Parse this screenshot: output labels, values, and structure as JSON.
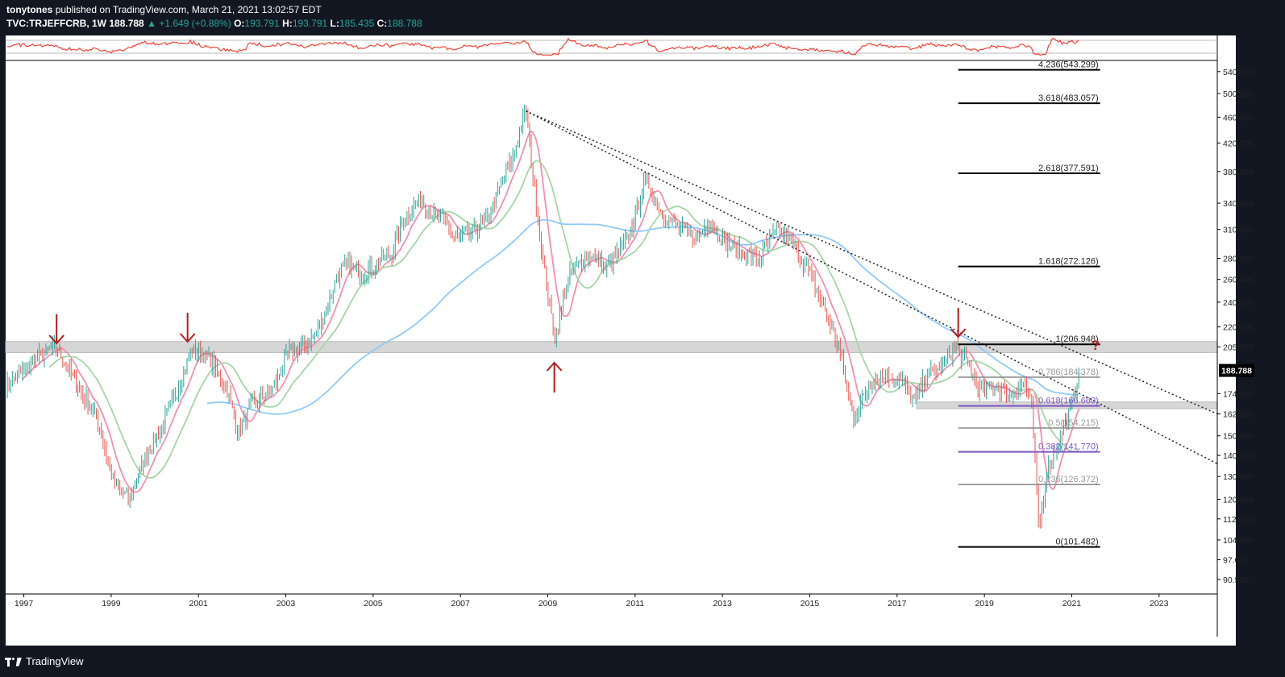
{
  "header": {
    "author": "tonytones",
    "published_text": "published on TradingView.com, March 21, 2021 13:02:57 EDT",
    "symbol": "TVC:TRJEFFCRB",
    "interval": "1W",
    "last": "188.788",
    "change": "+1.649 (+0.88%)",
    "open_label": "O:",
    "open": "193.791",
    "high_label": "H:",
    "high": "193.791",
    "low_label": "L:",
    "low": "185.435",
    "close_label": "C:",
    "close": "188.788"
  },
  "footer": {
    "brand": "TradingView"
  },
  "colors": {
    "up_candle": "#26a69a",
    "down_candle": "#ef5350",
    "ma_fast": "#f48fb1",
    "ma_mid": "#a5d6a7",
    "ma_slow": "#90caf9",
    "arrow": "#b71c1c",
    "fib_purple": "#7e57c2",
    "indicator": "#f44336",
    "price_badge": "#000000"
  },
  "chart_data": {
    "type": "line",
    "title": "TVC:TRJEFFCRB, 1W",
    "xlabel": "",
    "ylabel": "",
    "y_scale": "log",
    "ylim": [
      86,
      560
    ],
    "xlim": [
      "1996-08",
      "2024-05"
    ],
    "x_tick_labels": [
      "1997",
      "1999",
      "2001",
      "2003",
      "2005",
      "2007",
      "2009",
      "2011",
      "2013",
      "2015",
      "2017",
      "2019",
      "2021",
      "2023"
    ],
    "y_tick_labels": [
      "540.000",
      "500.000",
      "460.000",
      "420.000",
      "380.000",
      "340.000",
      "310.000",
      "280.000",
      "260.000",
      "240.000",
      "220.000",
      "205.000",
      "188.788",
      "174.000",
      "162.000",
      "150.000",
      "140.000",
      "130.000",
      "120.000",
      "112.000",
      "104.000",
      "97.000",
      "90.500"
    ],
    "last_price_label": "188.788",
    "series": [
      {
        "name": "TVC:TRJEFFCRB",
        "x": [
          "1996-08",
          "1997-04",
          "1997-10",
          "1998-03",
          "1998-09",
          "1999-02",
          "1999-06",
          "1999-10",
          "2000-03",
          "2000-07",
          "2000-11",
          "2001-04",
          "2001-09",
          "2001-12",
          "2002-04",
          "2002-09",
          "2003-02",
          "2003-06",
          "2003-10",
          "2004-03",
          "2004-06",
          "2004-10",
          "2005-03",
          "2005-06",
          "2005-10",
          "2006-02",
          "2006-05",
          "2006-09",
          "2006-11",
          "2007-03",
          "2007-08",
          "2007-12",
          "2008-03",
          "2008-07",
          "2008-09",
          "2008-12",
          "2009-03",
          "2009-06",
          "2009-08",
          "2010-01",
          "2010-05",
          "2010-11",
          "2011-04",
          "2011-08",
          "2011-12",
          "2012-06",
          "2012-09",
          "2013-02",
          "2013-07",
          "2013-11",
          "2014-04",
          "2014-07",
          "2014-10",
          "2015-01",
          "2015-05",
          "2015-09",
          "2016-01",
          "2016-06",
          "2016-10",
          "2017-02",
          "2017-06",
          "2017-09",
          "2018-01",
          "2018-05",
          "2018-09",
          "2018-12",
          "2019-04",
          "2019-08",
          "2019-12",
          "2020-02",
          "2020-04",
          "2020-06",
          "2020-09",
          "2020-11",
          "2021-01",
          "2021-03"
        ],
        "y": [
          178,
          196,
          205,
          182,
          160,
          126,
          120,
          138,
          155,
          176,
          203,
          197,
          175,
          152,
          168,
          175,
          202,
          205,
          218,
          262,
          275,
          265,
          278,
          285,
          325,
          345,
          330,
          318,
          300,
          305,
          318,
          360,
          395,
          470,
          370,
          270,
          210,
          255,
          270,
          285,
          270,
          300,
          370,
          330,
          315,
          300,
          320,
          295,
          285,
          280,
          310,
          300,
          285,
          265,
          235,
          205,
          160,
          182,
          185,
          182,
          170,
          186,
          190,
          206,
          190,
          175,
          180,
          172,
          182,
          165,
          107,
          132,
          146,
          155,
          167,
          188.788
        ]
      },
      {
        "name": "MA fast",
        "style": "pink"
      },
      {
        "name": "MA mid",
        "style": "green"
      },
      {
        "name": "MA slow",
        "style": "blue"
      }
    ],
    "fibonacci": [
      {
        "ratio": "4.236",
        "label": "4.236(543.299)",
        "value": 543.299
      },
      {
        "ratio": "3.618",
        "label": "3.618(483.057)",
        "value": 483.057
      },
      {
        "ratio": "2.618",
        "label": "2.618(377.591)",
        "value": 377.591
      },
      {
        "ratio": "1.618",
        "label": "1.618(272.126)",
        "value": 272.126
      },
      {
        "ratio": "1",
        "label": "1(206.948)",
        "value": 206.948
      },
      {
        "ratio": "0.786",
        "label": "0.786(184.378)",
        "value": 184.378
      },
      {
        "ratio": "0.618",
        "label": "0.618(166.660)",
        "value": 166.66
      },
      {
        "ratio": "0.5",
        "label": "0.5(154.215)",
        "value": 154.215
      },
      {
        "ratio": "0.382",
        "label": "0.382(141.770)",
        "value": 141.77
      },
      {
        "ratio": "0.236",
        "label": "0.236(126.372)",
        "value": 126.372
      },
      {
        "ratio": "0",
        "label": "0(101.482)",
        "value": 101.482
      }
    ],
    "resistance_zone": [
      201,
      209
    ],
    "support_zone": [
      165,
      169
    ],
    "annotations": {
      "question_mark": "?"
    }
  }
}
